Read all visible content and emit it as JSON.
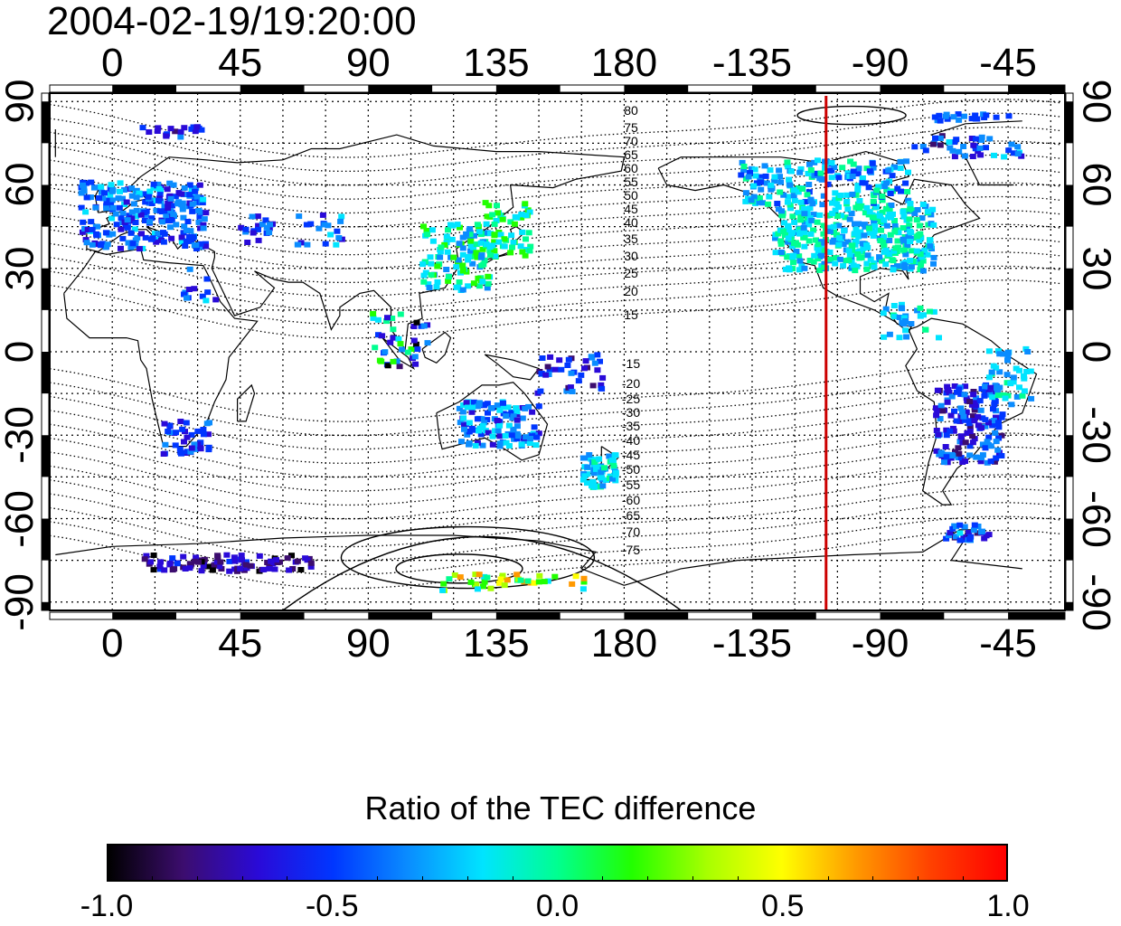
{
  "title": "2004-02-19/19:20:00",
  "map": {
    "lon_labels": [
      "0",
      "45",
      "90",
      "135",
      "180",
      "-135",
      "-90",
      "-45"
    ],
    "lon_values": [
      0,
      45,
      90,
      135,
      180,
      225,
      270,
      315
    ],
    "lat_labels": [
      "90",
      "60",
      "30",
      "0",
      "-30",
      "-60",
      "-90"
    ],
    "lat_values": [
      90,
      60,
      30,
      0,
      -30,
      -60,
      -90
    ],
    "lon_range": [
      -22,
      335
    ],
    "lat_range": [
      -93,
      93
    ],
    "magnetic_contour_labels": [
      "80",
      "75",
      "70",
      "65",
      "60",
      "55",
      "50",
      "45",
      "40",
      "35",
      "30",
      "25",
      "20",
      "15",
      "-15",
      "-20",
      "-25",
      "-30",
      "-35",
      "-40",
      "-45",
      "-50",
      "-55",
      "-60",
      "-65",
      "-70",
      "-75"
    ],
    "red_line_lon": -109,
    "red_line_color": "#cc0000"
  },
  "colorbar": {
    "title": "Ratio of the TEC difference",
    "tick_labels": [
      "-1.0",
      "-0.5",
      "0.0",
      "0.5",
      "1.0"
    ],
    "tick_values": [
      -1.0,
      -0.5,
      0.0,
      0.5,
      1.0
    ],
    "range": [
      -1.0,
      1.0
    ],
    "colors": [
      "#000000",
      "#3c0d6e",
      "#2a0ad8",
      "#0036ff",
      "#0a8cff",
      "#00e4ff",
      "#00ff90",
      "#22ff00",
      "#a8ff00",
      "#ffff00",
      "#ff9900",
      "#ff4000",
      "#ff0000"
    ]
  }
}
